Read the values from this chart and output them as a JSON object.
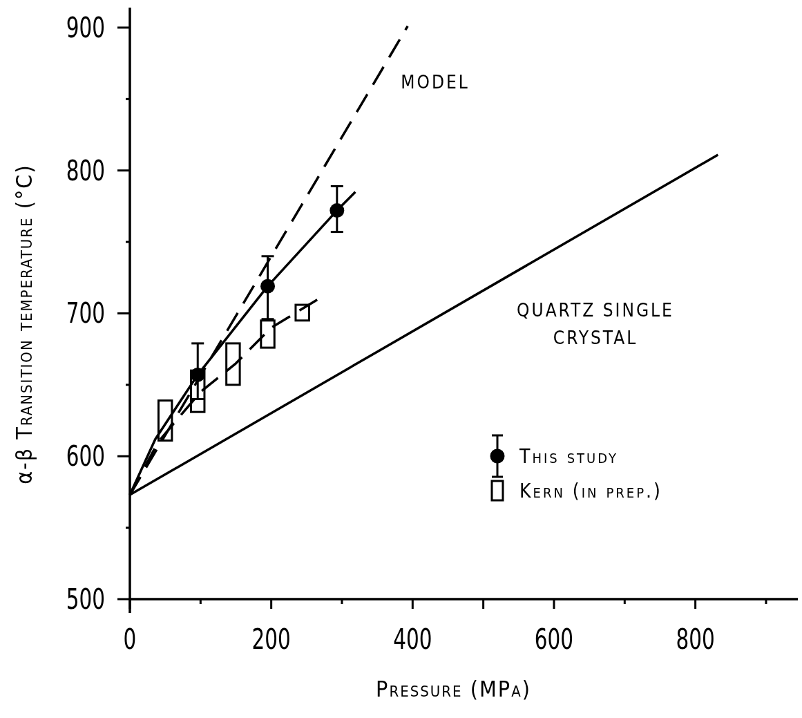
{
  "chart_data": {
    "type": "line",
    "xlabel": "Pressure (MPa)",
    "ylabel": "α-β Transition temperature (°C)",
    "xlim": [
      0,
      945
    ],
    "ylim": [
      500,
      914
    ],
    "xticks": [
      0,
      {
        "value": 100,
        "label": null
      },
      200,
      {
        "value": 300,
        "label": null
      },
      400,
      {
        "value": 500,
        "label": null
      },
      600,
      {
        "value": 700,
        "label": null
      },
      800,
      {
        "value": 900,
        "label": null
      }
    ],
    "yticks": [
      500,
      {
        "value": 550,
        "label": null
      },
      600,
      {
        "value": 650,
        "label": null
      },
      700,
      {
        "value": 750,
        "label": null
      },
      800,
      {
        "value": 850,
        "label": null
      },
      900
    ],
    "grid": false,
    "legend": "right",
    "series": [
      {
        "color": "#000000",
        "line_style": "solid",
        "x": [
          0,
          832
        ],
        "values": [
          573,
          811
        ]
      },
      {
        "color": "#000000",
        "line_style": "dashed",
        "x": [
          0,
          393
        ],
        "values": [
          573,
          901
        ]
      },
      {
        "color": "#000000",
        "line_style": "solid",
        "x": [
          0,
          36,
          96,
          195,
          293,
          319
        ],
        "values": [
          573,
          612,
          657,
          719,
          772,
          785
        ]
      },
      {
        "color": "#000000",
        "line_style": "dashed",
        "x": [
          0,
          40,
          100,
          150,
          200,
          270
        ],
        "values": [
          573,
          610,
          645,
          665,
          690,
          711
        ]
      },
      {
        "type": "scatter",
        "name": "This study",
        "color": "#000000",
        "marker": "circle",
        "x": [
          96,
          195,
          293
        ],
        "values": [
          657,
          719,
          772
        ],
        "errors": [
          [
            640,
            679
          ],
          [
            696,
            740
          ],
          [
            757,
            789
          ]
        ]
      },
      {
        "type": "bar",
        "name": "Kern (in prep.)",
        "color": "#000000",
        "x": [
          50,
          96,
          146,
          195,
          244
        ],
        "base": [
          611,
          631,
          650,
          676,
          695
        ],
        "values": [
          28,
          29,
          29,
          19,
          11
        ]
      }
    ],
    "annotations": [
      "MODEL",
      "QUARTZ SINGLE\nCRYSTAL"
    ]
  }
}
